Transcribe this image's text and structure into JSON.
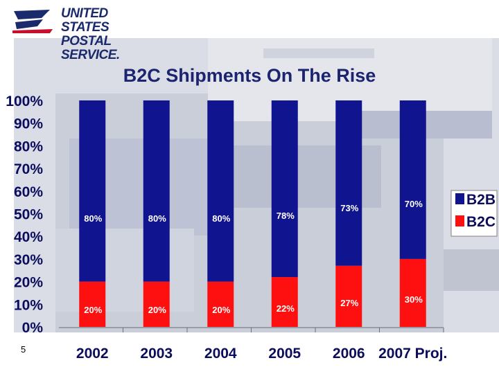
{
  "logo": {
    "line1": "UNITED STATES",
    "line2": "POSTAL SERVICE."
  },
  "page_number": "5",
  "colors": {
    "b2b": "#10148f",
    "b2c": "#ff1010",
    "text": "#0b0d5c",
    "title": "#1c2470"
  },
  "chart_data": {
    "type": "bar",
    "stacked": true,
    "title": "B2C Shipments On The Rise",
    "categories": [
      "2002",
      "2003",
      "2004",
      "2005",
      "2006",
      "2007 Proj."
    ],
    "series": [
      {
        "name": "B2C",
        "values": [
          20,
          20,
          20,
          22,
          27,
          30
        ],
        "labels": [
          "20%",
          "20%",
          "20%",
          "22%",
          "27%",
          "30%"
        ]
      },
      {
        "name": "B2B",
        "values": [
          80,
          80,
          80,
          78,
          73,
          70
        ],
        "labels": [
          "80%",
          "80%",
          "80%",
          "78%",
          "73%",
          "70%"
        ]
      }
    ],
    "ylim": [
      0,
      100
    ],
    "yticks": [
      "0%",
      "10%",
      "20%",
      "30%",
      "40%",
      "50%",
      "60%",
      "70%",
      "80%",
      "90%",
      "100%"
    ],
    "legend": {
      "position": "right",
      "entries": [
        "B2B",
        "B2C"
      ]
    },
    "grid": false
  }
}
